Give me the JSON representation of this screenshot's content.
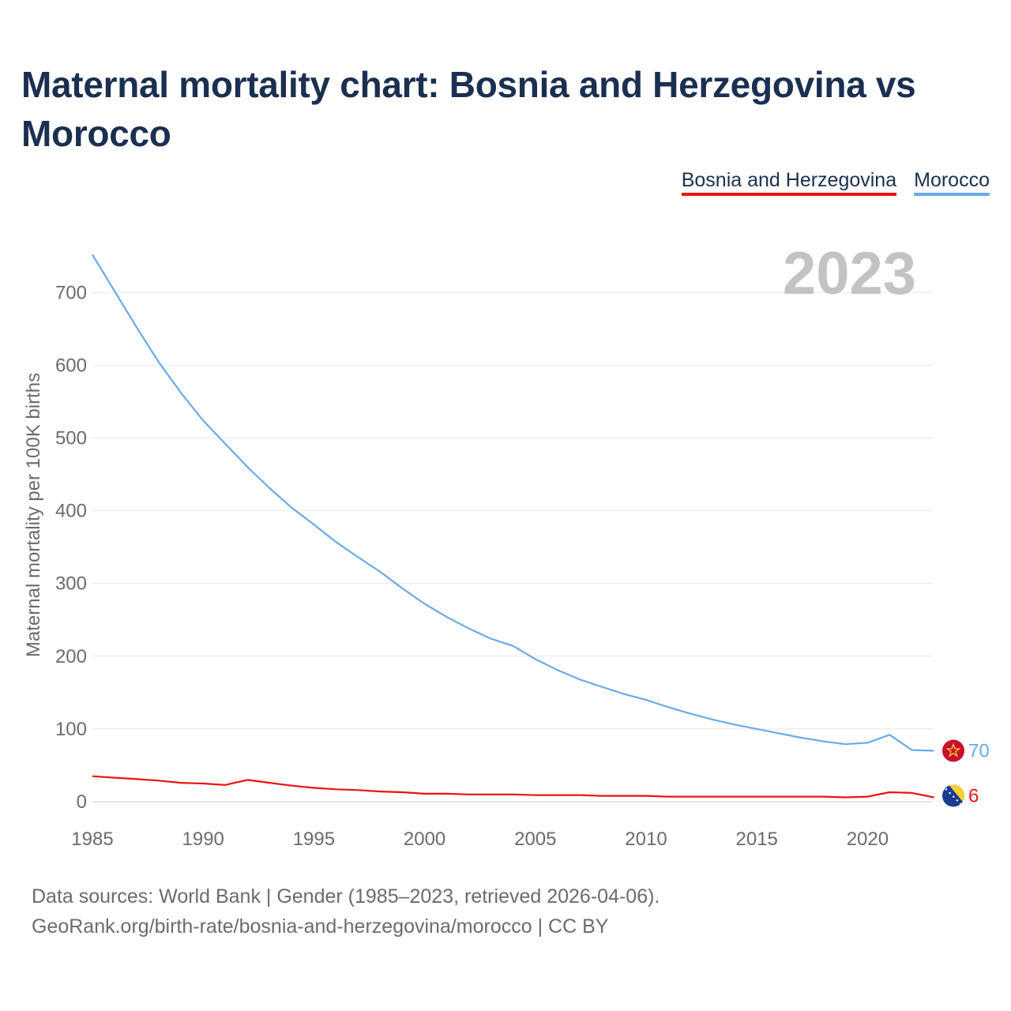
{
  "title": "Maternal mortality chart: Bosnia and Herzegovina vs Morocco",
  "legend": [
    {
      "name": "Bosnia and Herzegovina",
      "color": "#ee1111"
    },
    {
      "name": "Morocco",
      "color": "#6aabe8"
    }
  ],
  "year_label": "2023",
  "footer": {
    "line1": "Data sources: World Bank | Gender (1985–2023, retrieved 2026-04-06).",
    "line2": "GeoRank.org/birth-rate/bosnia-and-herzegovina/morocco | CC BY"
  },
  "chart_data": {
    "type": "line",
    "title": "Maternal mortality chart: Bosnia and Herzegovina vs Morocco",
    "xlabel": "",
    "ylabel": "Maternal mortality per 100K births",
    "xlim": [
      1985,
      2023
    ],
    "ylim": [
      0,
      750
    ],
    "xticks": [
      1985,
      1990,
      1995,
      2000,
      2005,
      2010,
      2015,
      2020
    ],
    "yticks": [
      0,
      100,
      200,
      300,
      400,
      500,
      600,
      700
    ],
    "grid": true,
    "legend_position": "top-right",
    "x": [
      1985,
      1986,
      1987,
      1988,
      1989,
      1990,
      1991,
      1992,
      1993,
      1994,
      1995,
      1996,
      1997,
      1998,
      1999,
      2000,
      2001,
      2002,
      2003,
      2004,
      2005,
      2006,
      2007,
      2008,
      2009,
      2010,
      2011,
      2012,
      2013,
      2014,
      2015,
      2016,
      2017,
      2018,
      2019,
      2020,
      2021,
      2022,
      2023
    ],
    "series": [
      {
        "name": "Morocco",
        "color": "#6aabe8",
        "end_label": "70",
        "values": [
          752,
          702,
          652,
          604,
          562,
          524,
          492,
          460,
          431,
          404,
          381,
          357,
          336,
          316,
          293,
          272,
          254,
          238,
          224,
          214,
          196,
          181,
          168,
          158,
          148,
          140,
          130,
          121,
          113,
          106,
          100,
          94,
          88,
          83,
          79,
          81,
          92,
          71,
          70
        ]
      },
      {
        "name": "Bosnia and Herzegovina",
        "color": "#ee1111",
        "end_label": "6",
        "values": [
          35,
          33,
          31,
          29,
          26,
          25,
          23,
          30,
          26,
          22,
          19,
          17,
          16,
          14,
          13,
          11,
          11,
          10,
          10,
          10,
          9,
          9,
          9,
          8,
          8,
          8,
          7,
          7,
          7,
          7,
          7,
          7,
          7,
          7,
          6,
          7,
          13,
          12,
          6
        ]
      }
    ]
  }
}
